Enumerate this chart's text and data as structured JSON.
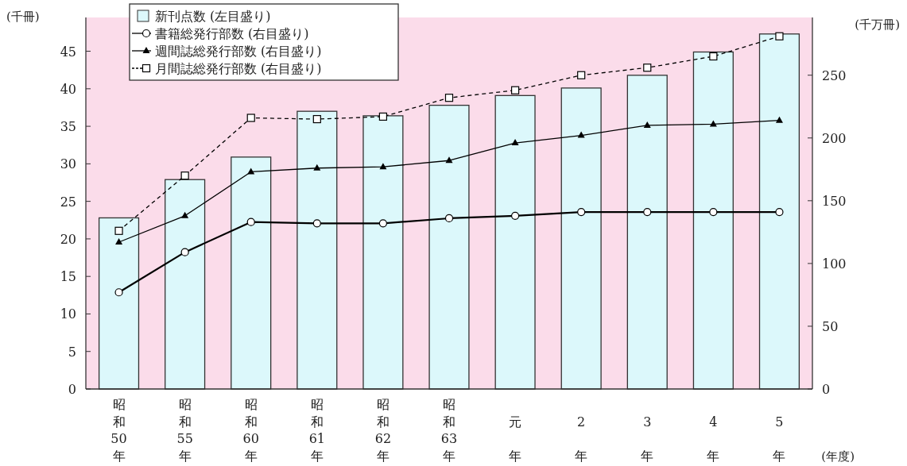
{
  "chart_data": {
    "type": "bar",
    "categories": [
      "昭和50年",
      "昭和55年",
      "昭和60年",
      "昭和61年",
      "昭和62年",
      "昭和63年",
      "元年",
      "2年",
      "3年",
      "4年",
      "5年"
    ],
    "xlabel": "(年度)",
    "ylabel": "(千冊)",
    "y2label": "(千万冊)",
    "ylim": [
      0,
      49.5
    ],
    "yticks": [
      0,
      5,
      10,
      15,
      20,
      25,
      30,
      35,
      40,
      45
    ],
    "y2lim": [
      0,
      296
    ],
    "y2ticks": [
      0,
      50,
      100,
      150,
      200,
      250
    ],
    "legend": "top left",
    "series": [
      {
        "name": "新刊点数 (左目盛り)",
        "color": "#dcf8fb",
        "values": [
          22.8,
          27.9,
          30.9,
          37.0,
          36.4,
          37.8,
          39.1,
          40.1,
          41.8,
          44.9,
          47.3
        ]
      },
      {
        "name": "書籍総発行部数 (右目盛り)",
        "type": "line",
        "axis": "y2",
        "color": "#000000",
        "marker": "circle",
        "line_style": "solid",
        "values": [
          77,
          109,
          133,
          132,
          132,
          136,
          138,
          141,
          141,
          141,
          141
        ]
      },
      {
        "name": "週間誌総発行部数 (右目盛り)",
        "type": "line",
        "axis": "y2",
        "color": "#000000",
        "marker": "triangle",
        "line_style": "solid",
        "values": [
          117,
          138,
          173,
          176,
          177,
          182,
          196,
          202,
          210,
          211,
          214
        ]
      },
      {
        "name": "月間誌総発行部数 (右目盛り)",
        "type": "line",
        "axis": "y2",
        "color": "#000000",
        "marker": "square",
        "line_style": "dashed",
        "values": [
          126,
          170,
          216,
          215,
          217,
          232,
          238,
          250,
          256,
          265,
          281
        ]
      }
    ]
  }
}
